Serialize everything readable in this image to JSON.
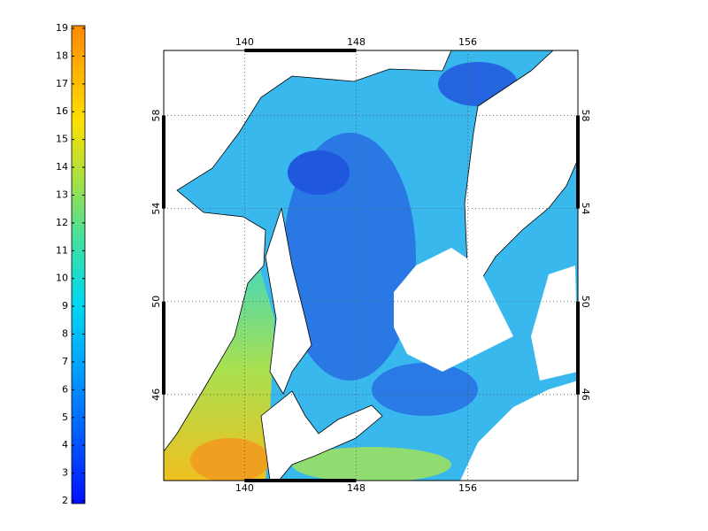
{
  "colorbar": {
    "range": [
      2,
      19
    ],
    "ticks": [
      2,
      3,
      4,
      5,
      6,
      7,
      8,
      9,
      10,
      11,
      12,
      13,
      14,
      15,
      16,
      17,
      18,
      19
    ]
  },
  "map": {
    "lon_range": [
      134.2,
      163.9
    ],
    "lat_range": [
      42.3,
      60.8
    ],
    "lon_ticks": [
      140,
      148,
      156
    ],
    "lat_ticks": [
      46,
      50,
      54,
      58
    ]
  }
}
